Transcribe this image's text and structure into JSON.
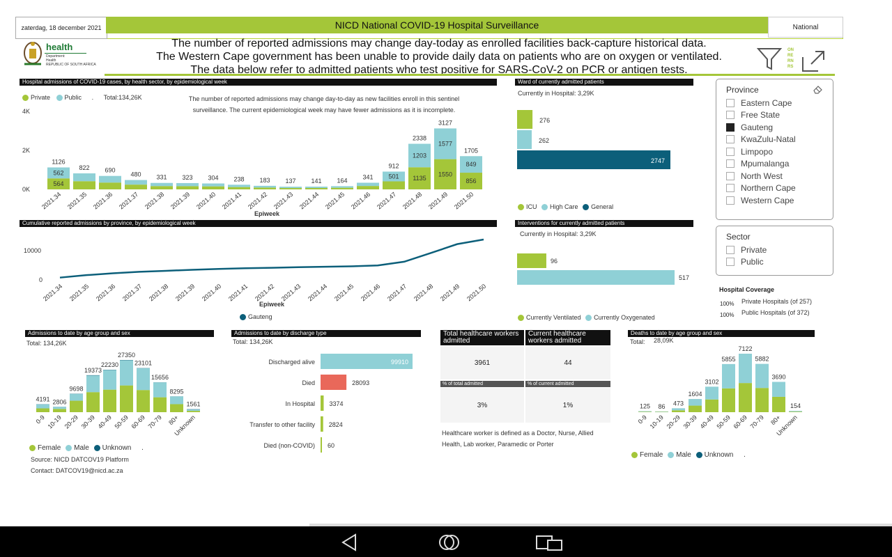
{
  "header": {
    "date": "zaterdag, 18 december 2021",
    "title": "NICD National COVID-19 Hospital Surveillance",
    "region": "National",
    "notices": [
      "The number of reported admissions may change day-today as enrolled facilities back-capture historical data.",
      "The Western Cape government has been unable to provide daily data on patients who are on oxygen or ventilated.",
      "The data below refer to admitted patients who test positive for SARS-CoV-2 on PCR or antigen tests."
    ],
    "logo": {
      "word": "health",
      "line1": "Department:",
      "line2": "Health",
      "line3": "REPUBLIC OF SOUTH AFRICA"
    },
    "side_text": [
      "ON",
      "RE",
      "RN",
      "RS"
    ]
  },
  "colors": {
    "green": "#a4c639",
    "teal": "#8fd0d6",
    "navy": "#0c5f7a",
    "red": "#e9685a",
    "black": "#111111"
  },
  "weekly": {
    "title": "Hospital admissions of COVID-19 cases, by health sector, by epidemiological week",
    "legend": {
      "private": "Private",
      "public": "Public",
      "dot": ".",
      "total": "Total:134,26K"
    },
    "note": "The number of reported admissions may change day-to-day as new facilities enroll in this sentinel surveillance. The current epidemiological week may have fewer admissions as it is incomplete.",
    "yticks": [
      "4K",
      "2K",
      "0K"
    ],
    "xlabel": "Epiweek"
  },
  "weekly_weeks": [
    "2021.34",
    "2021.35",
    "2021.36",
    "2021.37",
    "2021.38",
    "2021.39",
    "2021.40",
    "2021.41",
    "2021.42",
    "2021.43",
    "2021.44",
    "2021.45",
    "2021.46",
    "2021.47",
    "2021.48",
    "2021.49",
    "2021.50"
  ],
  "weekly_totals": [
    "1126",
    "822",
    "690",
    "480",
    "331",
    "323",
    "304",
    "238",
    "183",
    "137",
    "141",
    "164",
    "341",
    "912",
    "2338",
    "3127",
    "1705"
  ],
  "ward": {
    "title": "Ward of currently admitted patients",
    "current": "Currently in Hospital: 3,29K",
    "legend": [
      "ICU",
      "High Care",
      "General"
    ]
  },
  "cumulative": {
    "title": "Cumulative reported admissions by province, by epidemiological week",
    "yticks": [
      "10000",
      "0"
    ],
    "xlabel": "Epiweek",
    "legend": "Gauteng"
  },
  "interventions": {
    "title": "Interventions for currently admitted patients",
    "current": "Currently in Hospital: 3,29K",
    "legend": [
      "Currently Ventilated",
      "Currently Oxygenated"
    ]
  },
  "province_slicer": {
    "title": "Province",
    "items": [
      "Eastern Cape",
      "Free State",
      "Gauteng",
      "KwaZulu-Natal",
      "Limpopo",
      "Mpumalanga",
      "North West",
      "Northern Cape",
      "Western Cape"
    ],
    "selected": "Gauteng"
  },
  "sector_slicer": {
    "title": "Sector",
    "items": [
      "Private",
      "Public"
    ]
  },
  "coverage": {
    "title": "Hospital Coverage",
    "rows": [
      {
        "pct": "100%",
        "label": "Private Hospitals (of 257)"
      },
      {
        "pct": "100%",
        "label": "Public Hospitals (of 372)"
      }
    ]
  },
  "age_admissions": {
    "title": "Admissions to date by age group and sex",
    "total": "Total:  134,26K",
    "legend": [
      "Female",
      "Male",
      "Unknown"
    ],
    "dot": ".",
    "source": "Source: NICD DATCOV19 Platform",
    "contact": "Contact: DATCOV19@nicd.ac.za"
  },
  "discharge": {
    "title": "Admissions to date by discharge type",
    "total": "Total:  134,26K"
  },
  "hcw": {
    "total_header": "Total healthcare workers admitted",
    "current_header": "Current healthcare workers admitted",
    "total_value": "3961",
    "current_value": "44",
    "pct_total_header": "% of total admitted",
    "pct_current_header": "% of current admitted",
    "pct_total_value": "3%",
    "pct_current_value": "1%",
    "definition": "Healthcare worker is defined as a Doctor, Nurse, Allied Health,  Lab worker, Paramedic or Porter"
  },
  "deaths": {
    "title": "Deaths to date by age group and sex",
    "total_label": "Total:",
    "total": "28,09K",
    "legend": [
      "Female",
      "Male",
      "Unknown"
    ],
    "dot": "."
  },
  "chart_data": [
    {
      "type": "bar",
      "title": "Hospital admissions of COVID-19 cases, by health sector, by epidemiological week",
      "xlabel": "Epiweek",
      "ylim": [
        0,
        4000
      ],
      "categories": [
        "2021.34",
        "2021.35",
        "2021.36",
        "2021.37",
        "2021.38",
        "2021.39",
        "2021.40",
        "2021.41",
        "2021.42",
        "2021.43",
        "2021.44",
        "2021.45",
        "2021.46",
        "2021.47",
        "2021.48",
        "2021.49",
        "2021.50"
      ],
      "series": [
        {
          "name": "Private",
          "values": [
            564,
            420,
            350,
            245,
            170,
            165,
            155,
            120,
            95,
            70,
            72,
            84,
            175,
            411,
            1135,
            1550,
            856
          ]
        },
        {
          "name": "Public",
          "values": [
            562,
            402,
            340,
            235,
            161,
            158,
            149,
            118,
            88,
            67,
            69,
            80,
            166,
            501,
            1203,
            1577,
            849
          ]
        }
      ],
      "totals": [
        1126,
        822,
        690,
        480,
        331,
        323,
        304,
        238,
        183,
        137,
        141,
        164,
        341,
        912,
        2338,
        3127,
        1705
      ],
      "segment_labels": {
        "Private": {
          "0": 564,
          "14": 1135,
          "15": 1550,
          "16": 856
        },
        "Public": {
          "0": 562,
          "13": 501,
          "14": 1203,
          "15": 1577,
          "16": 849
        }
      }
    },
    {
      "type": "bar",
      "title": "Ward of currently admitted patients",
      "categories": [
        "ICU",
        "High Care",
        "General"
      ],
      "values": [
        276,
        262,
        2747
      ]
    },
    {
      "type": "line",
      "title": "Cumulative reported admissions by province, by epidemiological week",
      "xlabel": "Epiweek",
      "ylim": [
        0,
        14000
      ],
      "x": [
        "2021.34",
        "2021.35",
        "2021.36",
        "2021.37",
        "2021.38",
        "2021.39",
        "2021.40",
        "2021.41",
        "2021.42",
        "2021.43",
        "2021.44",
        "2021.45",
        "2021.46",
        "2021.47",
        "2021.48",
        "2021.49",
        "2021.50"
      ],
      "series": [
        {
          "name": "Gauteng",
          "values": [
            800,
            1650,
            2300,
            2800,
            3150,
            3500,
            3800,
            4050,
            4200,
            4400,
            4550,
            4700,
            5000,
            6300,
            9300,
            12400,
            14000
          ]
        }
      ]
    },
    {
      "type": "bar",
      "title": "Interventions for currently admitted patients",
      "categories": [
        "Currently Ventilated",
        "Currently Oxygenated"
      ],
      "values": [
        96,
        517
      ]
    },
    {
      "type": "bar",
      "title": "Admissions to date by age group and sex",
      "categories": [
        "0-9",
        "10-19",
        "20-29",
        "30-39",
        "40-49",
        "50-59",
        "60-69",
        "70-79",
        "80+",
        "Unknown"
      ],
      "totals": [
        4191,
        2806,
        9698,
        19373,
        22230,
        27350,
        23101,
        15656,
        8295,
        1561
      ],
      "series": [
        {
          "name": "Female",
          "values": [
            2000,
            1700,
            6000,
            10500,
            11800,
            14000,
            11600,
            7800,
            4200,
            700
          ]
        },
        {
          "name": "Male",
          "values": [
            2100,
            1050,
            3600,
            8700,
            10300,
            13200,
            11400,
            7800,
            4050,
            700
          ]
        },
        {
          "name": "Unknown",
          "values": [
            91,
            56,
            98,
            173,
            130,
            150,
            101,
            56,
            45,
            161
          ]
        }
      ]
    },
    {
      "type": "bar",
      "title": "Admissions to date by discharge type",
      "categories": [
        "Discharged alive",
        "Died",
        "In Hospital",
        "Transfer to other facility",
        "Died (non-COVID)"
      ],
      "values": [
        99910,
        28093,
        3374,
        2824,
        60
      ]
    },
    {
      "type": "bar",
      "title": "Deaths to date by age group and sex",
      "categories": [
        "0-9",
        "10-19",
        "20-29",
        "30-39",
        "40-49",
        "50-59",
        "60-69",
        "70-79",
        "80+",
        "Unknown"
      ],
      "totals": [
        125,
        86,
        473,
        1604,
        3102,
        5855,
        7122,
        5882,
        3690,
        154
      ],
      "series": [
        {
          "name": "Female",
          "values": [
            60,
            40,
            230,
            800,
            1550,
            2900,
            3550,
            2950,
            1870,
            70
          ]
        },
        {
          "name": "Male",
          "values": [
            62,
            44,
            240,
            800,
            1550,
            2950,
            3570,
            2930,
            1820,
            80
          ]
        },
        {
          "name": "Unknown",
          "values": [
            3,
            2,
            3,
            4,
            2,
            5,
            2,
            2,
            0,
            4
          ]
        }
      ]
    }
  ]
}
